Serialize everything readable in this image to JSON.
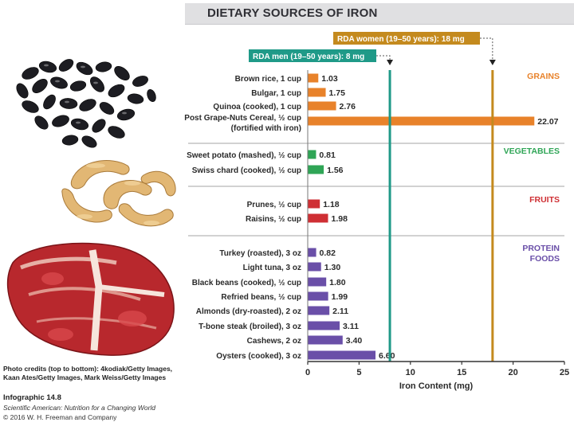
{
  "page": {
    "title": "DIETARY SOURCES OF IRON"
  },
  "credits": {
    "lines": [
      "Photo credits (top to bottom): 4kodiak/Getty Images,",
      "Kaan Ates/Getty Images, Mark Weiss/Getty Images"
    ],
    "infographic": "Infographic 14.8",
    "book": "Scientific American: Nutrition for a Changing World",
    "copyright": "© 2016 W. H. Freeman and Company"
  },
  "colors": {
    "grains": "#e8822a",
    "vegetables": "#2fa556",
    "fruits": "#cf2f34",
    "protein": "#6a4fa8",
    "rda_men": "#1f9a88",
    "rda_women": "#c48a1e",
    "axis": "#333333"
  },
  "chart_data": {
    "type": "bar",
    "orientation": "horizontal",
    "title": "DIETARY SOURCES OF IRON",
    "xlabel": "Iron Content (mg)",
    "xlim": [
      0,
      25
    ],
    "xticks": [
      0,
      5,
      10,
      15,
      20,
      25
    ],
    "reference_lines": [
      {
        "label": "RDA men (19–50 years): 8 mg",
        "value": 8,
        "color": "#1f9a88"
      },
      {
        "label": "RDA women (19–50 years): 18 mg",
        "value": 18,
        "color": "#c48a1e"
      }
    ],
    "groups": [
      {
        "name": "GRAINS",
        "color": "#e8822a",
        "items": [
          {
            "label": "Brown rice, 1 cup",
            "value": 1.03,
            "value_text": "1.03"
          },
          {
            "label": "Bulgar, 1 cup",
            "value": 1.75,
            "value_text": "1.75"
          },
          {
            "label": "Quinoa (cooked), 1 cup",
            "value": 2.76,
            "value_text": "2.76"
          },
          {
            "label": "Post Grape-Nuts Cereal, ½ cup",
            "label2": "(fortified with iron)",
            "value": 22.07,
            "value_text": "22.07"
          }
        ]
      },
      {
        "name": "VEGETABLES",
        "color": "#2fa556",
        "items": [
          {
            "label": "Sweet potato (mashed), ½ cup",
            "value": 0.81,
            "value_text": "0.81"
          },
          {
            "label": "Swiss chard (cooked), ½ cup",
            "value": 1.56,
            "value_text": "1.56"
          }
        ]
      },
      {
        "name": "FRUITS",
        "color": "#cf2f34",
        "items": [
          {
            "label": "Prunes, ½ cup",
            "value": 1.18,
            "value_text": "1.18"
          },
          {
            "label": "Raisins, ½ cup",
            "value": 1.98,
            "value_text": "1.98"
          }
        ]
      },
      {
        "name": "PROTEIN",
        "name2": "FOODS",
        "color": "#6a4fa8",
        "items": [
          {
            "label": "Turkey (roasted), 3 oz",
            "value": 0.82,
            "value_text": "0.82"
          },
          {
            "label": "Light tuna, 3 oz",
            "value": 1.3,
            "value_text": "1.30"
          },
          {
            "label": "Black beans (cooked), ½ cup",
            "value": 1.8,
            "value_text": "1.80"
          },
          {
            "label": "Refried beans, ½ cup",
            "value": 1.99,
            "value_text": "1.99"
          },
          {
            "label": "Almonds (dry-roasted), 2 oz",
            "value": 2.11,
            "value_text": "2.11"
          },
          {
            "label": "T-bone steak (broiled), 3 oz",
            "value": 3.11,
            "value_text": "3.11"
          },
          {
            "label": "Cashews, 2 oz",
            "value": 3.4,
            "value_text": "3.40"
          },
          {
            "label": "Oysters (cooked), 3 oz",
            "value": 6.6,
            "value_text": "6.60"
          }
        ]
      }
    ]
  }
}
